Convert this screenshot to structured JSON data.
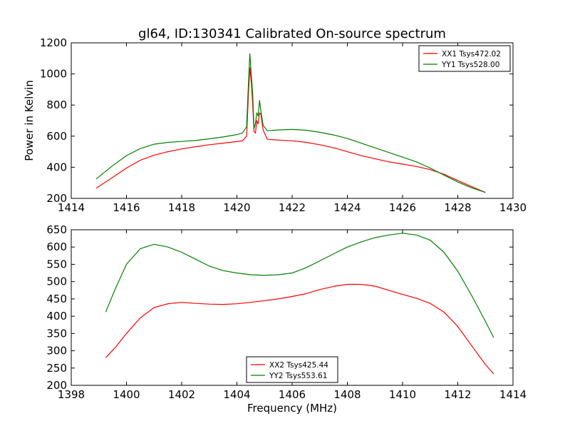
{
  "figure": {
    "title": "gl64, ID:130341 Calibrated On-source spectrum",
    "xlabel": "Frequency (MHz)",
    "ylabel": "Power in Kelvin"
  },
  "chart_data": [
    {
      "type": "line",
      "title": "gl64, ID:130341 Calibrated On-source spectrum",
      "xlabel": "",
      "ylabel": "Power in Kelvin",
      "xlim": [
        1414,
        1430
      ],
      "ylim": [
        200,
        1200
      ],
      "xticks": [
        1414,
        1416,
        1418,
        1420,
        1422,
        1424,
        1426,
        1428,
        1430
      ],
      "yticks": [
        200,
        400,
        600,
        800,
        1000,
        1200
      ],
      "legend_position": "top-right",
      "grid": false,
      "series": [
        {
          "name": "XX1 Tsys472.02",
          "color": "#ff0000",
          "x": [
            1414.9,
            1415.5,
            1416.0,
            1416.5,
            1417.0,
            1417.5,
            1418.0,
            1418.5,
            1419.0,
            1419.5,
            1420.0,
            1420.2,
            1420.35,
            1420.42,
            1420.47,
            1420.52,
            1420.57,
            1420.62,
            1420.67,
            1420.72,
            1420.77,
            1420.82,
            1420.87,
            1420.95,
            1421.1,
            1421.5,
            1422.0,
            1422.5,
            1423.0,
            1423.5,
            1424.0,
            1424.5,
            1425.0,
            1425.5,
            1426.0,
            1426.5,
            1427.0,
            1427.5,
            1428.0,
            1428.5,
            1429.0
          ],
          "values": [
            265,
            335,
            395,
            445,
            478,
            500,
            518,
            532,
            545,
            555,
            565,
            570,
            600,
            880,
            1040,
            950,
            810,
            630,
            620,
            700,
            680,
            750,
            740,
            640,
            580,
            575,
            570,
            560,
            545,
            525,
            500,
            475,
            455,
            435,
            420,
            405,
            385,
            355,
            315,
            275,
            238
          ]
        },
        {
          "name": "YY1 Tsys528.00",
          "color": "#008000",
          "x": [
            1414.9,
            1415.5,
            1416.0,
            1416.5,
            1417.0,
            1417.5,
            1418.0,
            1418.5,
            1419.0,
            1419.5,
            1420.0,
            1420.2,
            1420.35,
            1420.42,
            1420.47,
            1420.52,
            1420.57,
            1420.62,
            1420.67,
            1420.72,
            1420.77,
            1420.82,
            1420.87,
            1420.95,
            1421.1,
            1421.5,
            1422.0,
            1422.5,
            1423.0,
            1423.5,
            1424.0,
            1424.5,
            1425.0,
            1425.5,
            1426.0,
            1426.5,
            1427.0,
            1427.5,
            1428.0,
            1428.5,
            1429.0
          ],
          "values": [
            325,
            410,
            475,
            520,
            548,
            560,
            566,
            572,
            583,
            595,
            610,
            620,
            660,
            950,
            1130,
            1000,
            880,
            650,
            680,
            750,
            730,
            830,
            760,
            670,
            635,
            640,
            643,
            638,
            625,
            608,
            585,
            555,
            525,
            495,
            465,
            435,
            395,
            350,
            305,
            268,
            238
          ]
        }
      ]
    },
    {
      "type": "line",
      "title": "",
      "xlabel": "Frequency (MHz)",
      "ylabel": "",
      "xlim": [
        1398,
        1414
      ],
      "ylim": [
        200,
        650
      ],
      "xticks": [
        1398,
        1400,
        1402,
        1404,
        1406,
        1408,
        1410,
        1412,
        1414
      ],
      "yticks": [
        200,
        250,
        300,
        350,
        400,
        450,
        500,
        550,
        600,
        650
      ],
      "legend_position": "bottom-center",
      "grid": false,
      "series": [
        {
          "name": "XX2 Tsys425.44",
          "color": "#ff0000",
          "x": [
            1399.25,
            1399.6,
            1400.0,
            1400.5,
            1401.0,
            1401.5,
            1402.0,
            1402.5,
            1403.0,
            1403.5,
            1404.0,
            1404.5,
            1405.0,
            1405.5,
            1406.0,
            1406.5,
            1407.0,
            1407.5,
            1408.0,
            1408.5,
            1409.0,
            1409.5,
            1410.0,
            1410.5,
            1411.0,
            1411.5,
            1412.0,
            1412.5,
            1413.0,
            1413.3
          ],
          "values": [
            280,
            310,
            350,
            395,
            425,
            436,
            440,
            437,
            435,
            434,
            436,
            440,
            445,
            450,
            457,
            465,
            477,
            486,
            492,
            492,
            487,
            475,
            463,
            452,
            437,
            412,
            370,
            315,
            260,
            233
          ]
        },
        {
          "name": "YY2 Tsys553.61",
          "color": "#008000",
          "x": [
            1399.25,
            1399.6,
            1400.0,
            1400.5,
            1401.0,
            1401.5,
            1402.0,
            1402.5,
            1403.0,
            1403.5,
            1404.0,
            1404.5,
            1405.0,
            1405.5,
            1406.0,
            1406.5,
            1407.0,
            1407.5,
            1408.0,
            1408.5,
            1409.0,
            1409.5,
            1410.0,
            1410.5,
            1411.0,
            1411.5,
            1412.0,
            1412.5,
            1413.0,
            1413.3
          ],
          "values": [
            412,
            480,
            550,
            595,
            608,
            600,
            585,
            565,
            545,
            532,
            525,
            520,
            518,
            520,
            525,
            540,
            560,
            580,
            600,
            615,
            627,
            635,
            640,
            635,
            620,
            585,
            530,
            460,
            385,
            338
          ]
        }
      ]
    }
  ]
}
